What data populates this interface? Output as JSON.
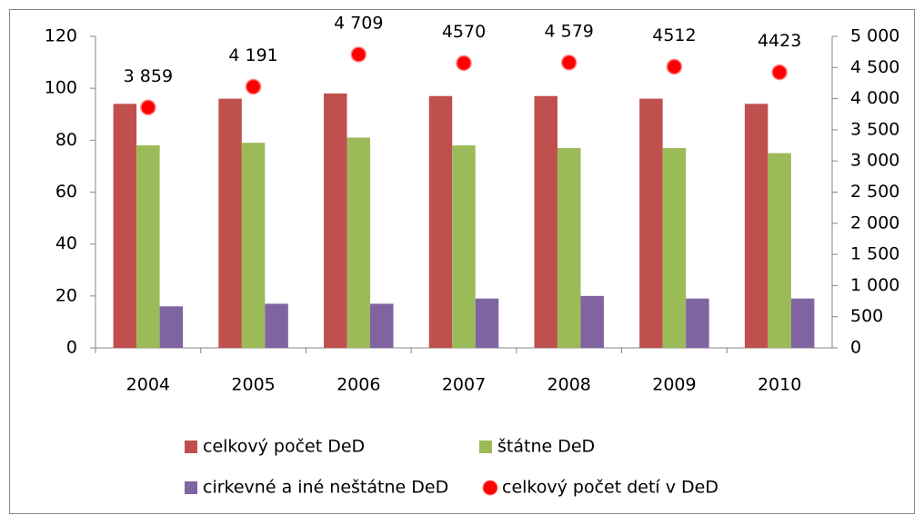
{
  "chart_data": {
    "type": "bar",
    "categories": [
      "2004",
      "2005",
      "2006",
      "2007",
      "2008",
      "2009",
      "2010"
    ],
    "series": [
      {
        "name": "celkový počet DeD",
        "color": "#c0504d",
        "values": [
          94,
          96,
          98,
          97,
          97,
          96,
          94
        ]
      },
      {
        "name": "štátne DeD",
        "color": "#9bbb59",
        "values": [
          78,
          79,
          81,
          78,
          77,
          77,
          75
        ]
      },
      {
        "name": "cirkevné a iné neštátne DeD",
        "color": "#8064a2",
        "values": [
          16,
          17,
          17,
          19,
          20,
          19,
          19
        ]
      },
      {
        "name": "celkový počet detí v DeD",
        "color": "#ff0000",
        "type": "scatter",
        "axis": "y2",
        "values": [
          3859,
          4191,
          4709,
          4570,
          4579,
          4512,
          4423
        ],
        "value_labels": [
          "3 859",
          "4 191",
          "4 709",
          "4570",
          "4 579",
          "4512",
          "4423"
        ]
      }
    ],
    "ylim": [
      0,
      120
    ],
    "yticks": [
      0,
      20,
      40,
      60,
      80,
      100,
      120
    ],
    "y2lim": [
      0,
      5000
    ],
    "y2ticks": [
      0,
      500,
      {
        "value": 1000,
        "label": "1 000"
      },
      {
        "value": 1500,
        "label": "1 500"
      },
      {
        "value": 2000,
        "label": "2 000"
      },
      {
        "value": 2500,
        "label": "2 500"
      },
      {
        "value": 3000,
        "label": "3 000"
      },
      {
        "value": 3500,
        "label": "3 500"
      },
      {
        "value": 4000,
        "label": "4 000"
      },
      {
        "value": 4500,
        "label": "4 500"
      },
      {
        "value": 5000,
        "label": "5 000"
      }
    ],
    "grid": false,
    "legend": "bottom"
  }
}
